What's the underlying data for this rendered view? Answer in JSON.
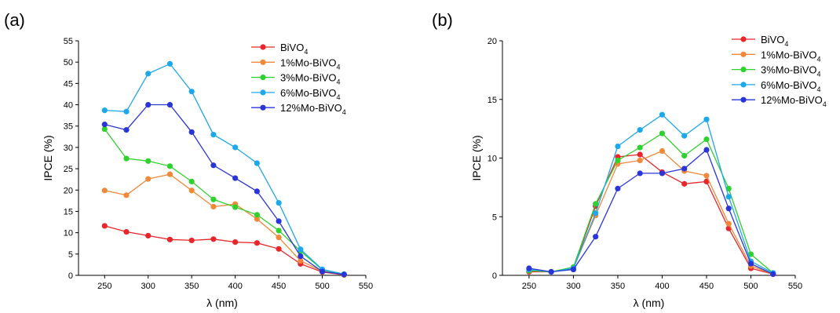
{
  "panels": [
    {
      "label": "(a)"
    },
    {
      "label": "(b)"
    }
  ],
  "chart_data": [
    {
      "type": "line",
      "panel": "(a)",
      "xlabel": "λ (nm)",
      "ylabel": "IPCE (%)",
      "xlim": [
        220,
        550
      ],
      "ylim": [
        0,
        55
      ],
      "xticks": [
        250,
        300,
        350,
        400,
        450,
        500,
        550
      ],
      "yticks": [
        0,
        5,
        10,
        15,
        20,
        25,
        30,
        35,
        40,
        45,
        50,
        55
      ],
      "legend_position": "top-right",
      "x": [
        250,
        275,
        300,
        325,
        350,
        375,
        400,
        425,
        450,
        475,
        500,
        525
      ],
      "series": [
        {
          "name": "BiVO4",
          "name_base": "BiVO",
          "name_sub": "4",
          "color": "#e8262b",
          "values": [
            11.6,
            10.2,
            9.3,
            8.4,
            8.2,
            8.5,
            7.8,
            7.6,
            6.2,
            2.7,
            0.8,
            0.1
          ]
        },
        {
          "name": "1%Mo-BiVO4",
          "name_base": "1%Mo-BiVO",
          "name_sub": "4",
          "color": "#f08a3a",
          "values": [
            19.9,
            18.8,
            22.6,
            23.7,
            19.9,
            16.1,
            16.7,
            13.2,
            8.9,
            3.4,
            1.0,
            0.1
          ]
        },
        {
          "name": "3%Mo-BiVO4",
          "name_base": "3%Mo-BiVO",
          "name_sub": "4",
          "color": "#2fd12e",
          "values": [
            34.3,
            27.4,
            26.8,
            25.6,
            22.0,
            17.8,
            16.0,
            14.2,
            10.5,
            5.7,
            1.3,
            0.2
          ]
        },
        {
          "name": "6%Mo-BiVO4",
          "name_base": "6%Mo-BiVO",
          "name_sub": "4",
          "color": "#1ea8ec",
          "values": [
            38.7,
            38.4,
            47.3,
            49.6,
            43.1,
            33.0,
            30.0,
            26.3,
            17.0,
            6.1,
            1.4,
            0.3
          ]
        },
        {
          "name": "12%Mo-BiVO4",
          "name_base": "12%Mo-BiVO",
          "name_sub": "4",
          "color": "#2a35d8",
          "values": [
            35.4,
            34.1,
            40.0,
            40.0,
            33.6,
            25.8,
            22.8,
            19.7,
            12.7,
            4.5,
            0.9,
            0.2
          ]
        }
      ]
    },
    {
      "type": "line",
      "panel": "(b)",
      "xlabel": "λ (nm)",
      "ylabel": "IPCE (%)",
      "xlim": [
        220,
        550
      ],
      "ylim": [
        0,
        20
      ],
      "xticks": [
        250,
        300,
        350,
        400,
        450,
        500,
        550
      ],
      "yticks": [
        0,
        5,
        10,
        15,
        20
      ],
      "legend_position": "top-right",
      "x": [
        250,
        275,
        300,
        325,
        350,
        375,
        400,
        425,
        450,
        475,
        500,
        525
      ],
      "series": [
        {
          "name": "BiVO4",
          "name_base": "BiVO",
          "name_sub": "4",
          "color": "#e8262b",
          "values": [
            0.3,
            0.3,
            0.6,
            5.9,
            10.1,
            10.3,
            8.8,
            7.8,
            8.0,
            4.0,
            0.6,
            0.1
          ]
        },
        {
          "name": "1%Mo-BiVO4",
          "name_base": "1%Mo-BiVO",
          "name_sub": "4",
          "color": "#f08a3a",
          "values": [
            0.4,
            0.3,
            0.6,
            5.1,
            9.5,
            9.8,
            10.6,
            8.9,
            8.5,
            4.4,
            0.8,
            0.1
          ]
        },
        {
          "name": "3%Mo-BiVO4",
          "name_base": "3%Mo-BiVO",
          "name_sub": "4",
          "color": "#2fd12e",
          "values": [
            0.4,
            0.3,
            0.7,
            6.1,
            9.8,
            10.9,
            12.1,
            10.2,
            11.6,
            7.4,
            1.8,
            0.2
          ]
        },
        {
          "name": "6%Mo-BiVO4",
          "name_base": "6%Mo-BiVO",
          "name_sub": "4",
          "color": "#1ea8ec",
          "values": [
            0.5,
            0.3,
            0.6,
            5.3,
            11.0,
            12.4,
            13.7,
            11.9,
            13.3,
            6.7,
            1.2,
            0.2
          ]
        },
        {
          "name": "12%Mo-BiVO4",
          "name_base": "12%Mo-BiVO",
          "name_sub": "4",
          "color": "#2a35d8",
          "values": [
            0.6,
            0.3,
            0.5,
            3.3,
            7.4,
            8.7,
            8.7,
            9.1,
            10.7,
            5.7,
            1.0,
            0.1
          ]
        }
      ]
    }
  ]
}
